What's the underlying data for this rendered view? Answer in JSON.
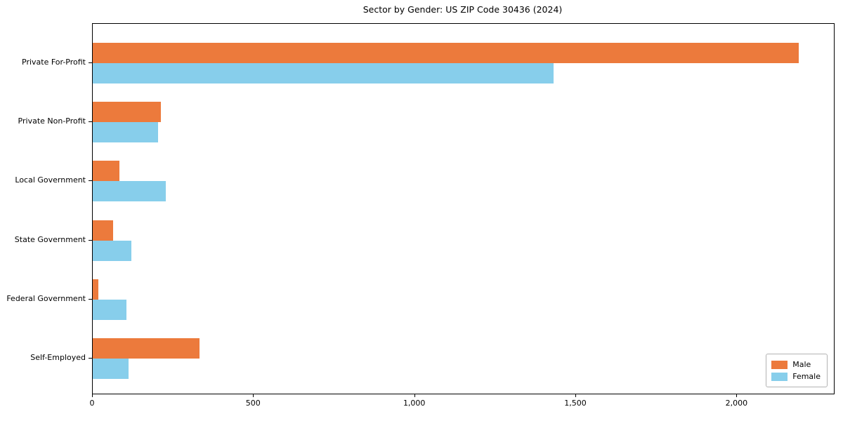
{
  "chart_data": {
    "type": "bar",
    "orientation": "horizontal",
    "title": "Sector by Gender: US ZIP Code 30436 (2024)",
    "categories": [
      "Private For-Profit",
      "Private Non-Profit",
      "Local Government",
      "State Government",
      "Federal Government",
      "Self-Employed"
    ],
    "series": [
      {
        "name": "Male",
        "color": "#ec7a3c",
        "values": [
          2190,
          212,
          82,
          64,
          17,
          332
        ]
      },
      {
        "name": "Female",
        "color": "#87ceeb",
        "values": [
          1430,
          202,
          227,
          120,
          105,
          110
        ]
      }
    ],
    "xlim": [
      0,
      2300
    ],
    "xticks": [
      {
        "value": 0,
        "label": "0"
      },
      {
        "value": 500,
        "label": "500"
      },
      {
        "value": 1000,
        "label": "1,000"
      },
      {
        "value": 1500,
        "label": "1,500"
      },
      {
        "value": 2000,
        "label": "2,000"
      }
    ],
    "grid": false,
    "legend_position": "lower right",
    "axis_color": "#000000"
  }
}
